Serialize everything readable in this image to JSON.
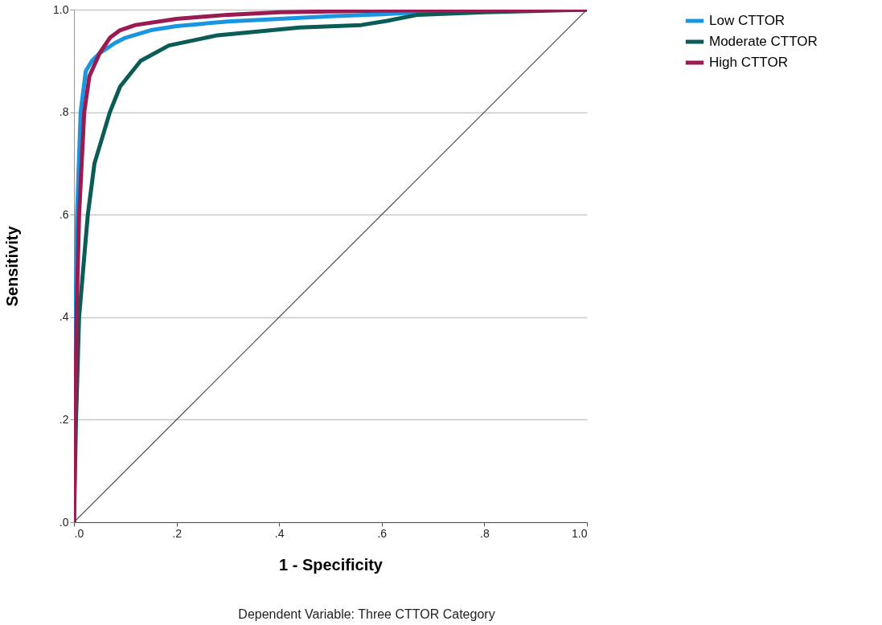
{
  "chart_data": {
    "type": "line",
    "xlabel": "1 - Specificity",
    "ylabel": "Sensitivity",
    "annotations": [
      "Dependent Variable: Three CTTOR Category"
    ],
    "xlim": [
      0,
      1
    ],
    "ylim": [
      0,
      1
    ],
    "xticks": [
      {
        "value": 0,
        "label": ".0"
      },
      {
        "value": 0.2,
        "label": ".2"
      },
      {
        "value": 0.4,
        "label": ".4"
      },
      {
        "value": 0.6,
        "label": ".6"
      },
      {
        "value": 0.8,
        "label": ".8"
      },
      {
        "value": 1,
        "label": "1.0"
      }
    ],
    "yticks": [
      {
        "value": 0,
        "label": ".0"
      },
      {
        "value": 0.2,
        "label": ".2"
      },
      {
        "value": 0.4,
        "label": ".4"
      },
      {
        "value": 0.6,
        "label": ".6"
      },
      {
        "value": 0.8,
        "label": ".8"
      },
      {
        "value": 1,
        "label": "1.0"
      }
    ],
    "grid": "y",
    "legend": "right",
    "line_style": "solid",
    "marker": "none",
    "series": [
      {
        "name": "Low CTTOR",
        "color": "#1a96e0",
        "x": [
          0,
          0.003,
          0.006,
          0.013,
          0.023,
          0.035,
          0.05,
          0.08,
          0.1,
          0.15,
          0.2,
          0.3,
          0.4,
          0.5,
          0.6,
          0.7,
          0.8,
          1
        ],
        "values": [
          0,
          0.4,
          0.6,
          0.8,
          0.88,
          0.9,
          0.915,
          0.935,
          0.945,
          0.96,
          0.968,
          0.977,
          0.982,
          0.987,
          0.991,
          0.996,
          0.998,
          1
        ]
      },
      {
        "name": "Moderate CTTOR",
        "color": "#0b5c55",
        "x": [
          0,
          0.004,
          0.01,
          0.027,
          0.04,
          0.07,
          0.09,
          0.13,
          0.185,
          0.28,
          0.44,
          0.56,
          0.61,
          0.67,
          0.8,
          1
        ],
        "values": [
          0,
          0.2,
          0.4,
          0.6,
          0.7,
          0.8,
          0.85,
          0.9,
          0.93,
          0.95,
          0.965,
          0.97,
          0.978,
          0.99,
          0.995,
          1
        ]
      },
      {
        "name": "High CTTOR",
        "color": "#9a1a52",
        "x": [
          0,
          0.005,
          0.01,
          0.02,
          0.03,
          0.05,
          0.07,
          0.09,
          0.12,
          0.2,
          0.3,
          0.4,
          0.6,
          0.8,
          1
        ],
        "values": [
          0,
          0.4,
          0.6,
          0.8,
          0.87,
          0.915,
          0.945,
          0.96,
          0.97,
          0.982,
          0.99,
          0.995,
          0.998,
          0.999,
          1
        ]
      },
      {
        "color": "#444444",
        "x": [
          0,
          1
        ],
        "values": [
          0,
          1
        ]
      }
    ]
  }
}
